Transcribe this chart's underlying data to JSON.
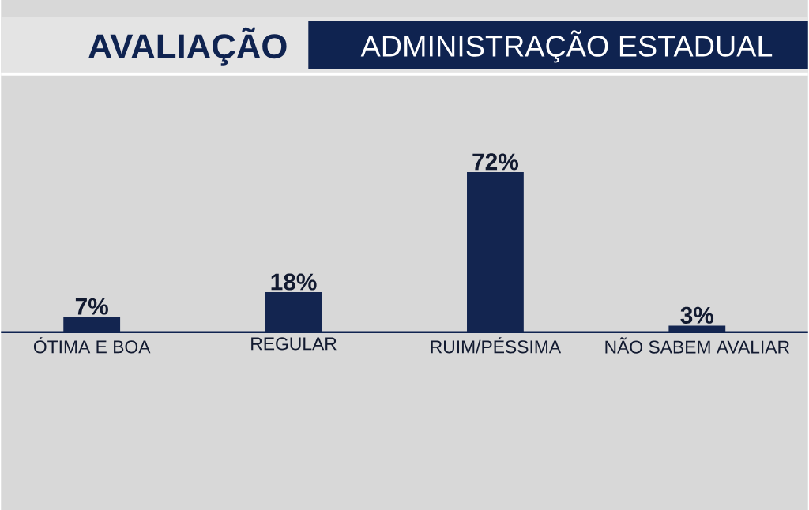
{
  "chart_data": {
    "type": "bar",
    "title": "AVALIAÇÃO",
    "subtitle": "ADMINISTRAÇÃO ESTADUAL",
    "categories": [
      "ÓTIMA E BOA",
      "REGULAR",
      "RUIM/PÉSSIMA",
      "NÃO SABEM AVALIAR"
    ],
    "values": [
      7,
      18,
      72,
      3
    ],
    "value_labels": [
      "7%",
      "18%",
      "72%",
      "3%"
    ],
    "color": "#132550"
  }
}
